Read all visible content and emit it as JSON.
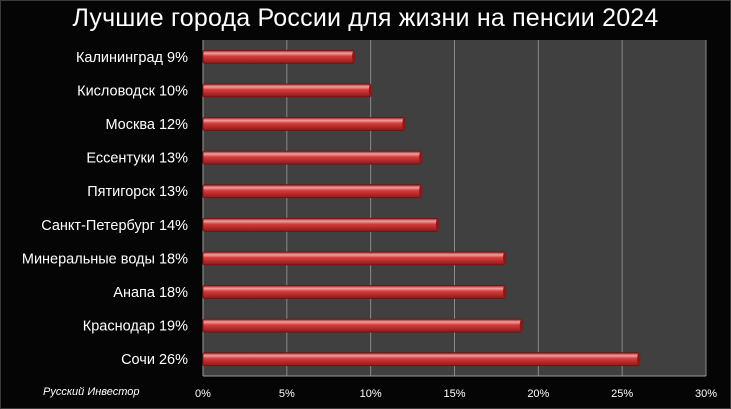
{
  "chart_data": {
    "type": "bar",
    "orientation": "horizontal",
    "title": "Лучшие города России для жизни на пенсии 2024",
    "source": "Русский Инвестор",
    "categories": [
      "Калининград 9%",
      "Кисловодск 10%",
      "Москва 12%",
      "Ессентуки 13%",
      "Пятигорск 13%",
      "Санкт-Петербург 14%",
      "Минеральные воды 18%",
      "Анапа 18%",
      "Краснодар 19%",
      "Сочи 26%"
    ],
    "values": [
      9,
      10,
      12,
      13,
      13,
      14,
      18,
      18,
      19,
      26
    ],
    "xlim": [
      0,
      30
    ],
    "xticks": [
      "0%",
      "5%",
      "10%",
      "15%",
      "20%",
      "25%",
      "30%"
    ],
    "xtick_values": [
      0,
      5,
      10,
      15,
      20,
      25,
      30
    ],
    "grid": true,
    "legend": "none"
  },
  "colors": {
    "plot_background": "#404040",
    "bar": "#d63c3c",
    "bar_highlight": "#f4a0a0",
    "bar_shadow": "#8a1a1a",
    "grid": "#8a8a8a",
    "text": "#ffffff"
  }
}
